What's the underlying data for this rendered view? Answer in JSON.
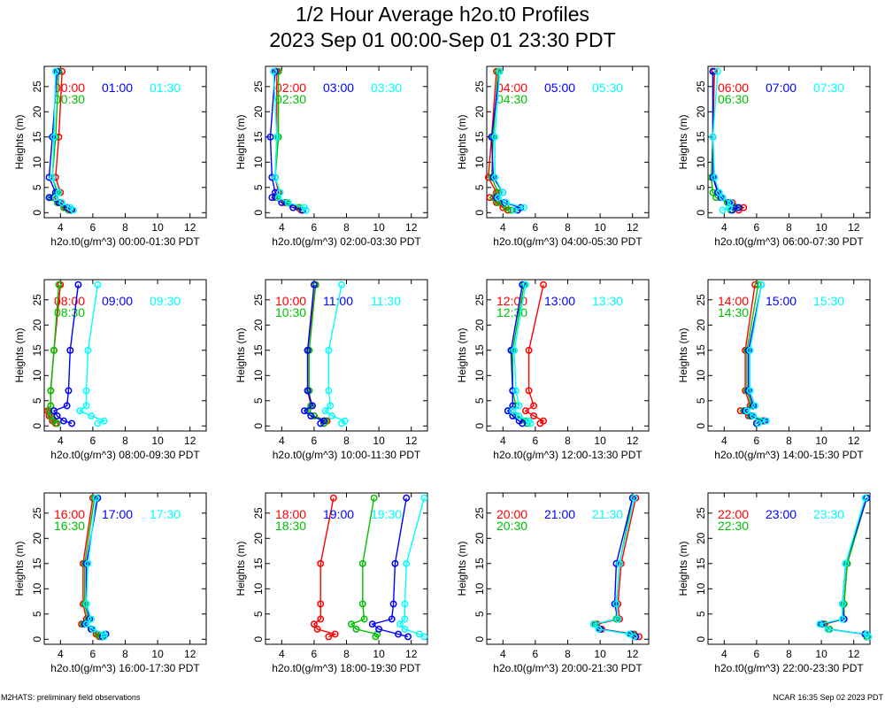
{
  "title": "1/2 Hour Average h2o.t0 Profiles",
  "subtitle": "2023 Sep 01 00:00-Sep 01 23:30 PDT",
  "footer_left": "M2HATS: preliminary field observations",
  "footer_right": "NCAR 16:35 Sep 02 2023 PDT",
  "colors": {
    "series1": "#ff0000",
    "series2": "#00c000",
    "series3": "#0000ff",
    "series4": "#00ffff"
  },
  "chart_data": [
    {
      "type": "line",
      "ylabel": "Heights (m)",
      "xlabel": "h2o.t0(g/m^3) 00:00-01:30 PDT",
      "xlim": [
        3,
        13
      ],
      "ylim": [
        -1,
        29
      ],
      "xticks": [
        4,
        6,
        8,
        10,
        12
      ],
      "yticks": [
        0,
        5,
        10,
        15,
        20,
        25
      ],
      "y": [
        0.5,
        1,
        2,
        3,
        4,
        7,
        15,
        28
      ],
      "series": [
        {
          "name": "00:00",
          "color": "#ff0000",
          "values": [
            4.6,
            4.3,
            4.0,
            3.6,
            4.0,
            3.7,
            3.9,
            4.1
          ]
        },
        {
          "name": "00:30",
          "color": "#00c000",
          "values": [
            4.5,
            4.2,
            3.8,
            3.4,
            3.8,
            3.5,
            3.7,
            3.9
          ]
        },
        {
          "name": "01:00",
          "color": "#0000ff",
          "values": [
            4.7,
            4.4,
            3.9,
            3.3,
            3.7,
            3.3,
            3.5,
            3.8
          ]
        },
        {
          "name": "01:30",
          "color": "#00ffff",
          "values": [
            4.8,
            4.6,
            4.1,
            3.7,
            3.9,
            3.5,
            3.6,
            3.7
          ]
        }
      ]
    },
    {
      "type": "line",
      "ylabel": "Heights (m)",
      "xlabel": "h2o.t0(g/m^3) 02:00-03:30 PDT",
      "xlim": [
        3,
        13
      ],
      "ylim": [
        -1,
        29
      ],
      "xticks": [
        4,
        6,
        8,
        10,
        12
      ],
      "yticks": [
        0,
        5,
        10,
        15,
        20,
        25
      ],
      "y": [
        0.5,
        1,
        2,
        3,
        4,
        7,
        15,
        28
      ],
      "series": [
        {
          "name": "02:00",
          "color": "#ff0000",
          "values": [
            5.2,
            5.0,
            4.2,
            3.6,
            3.8,
            3.6,
            3.7,
            3.7
          ]
        },
        {
          "name": "02:30",
          "color": "#00c000",
          "values": [
            5.3,
            5.1,
            4.3,
            3.7,
            3.9,
            3.6,
            3.8,
            3.8
          ]
        },
        {
          "name": "03:00",
          "color": "#0000ff",
          "values": [
            5.3,
            4.7,
            4.0,
            3.4,
            3.6,
            3.4,
            3.3,
            3.6
          ]
        },
        {
          "name": "03:30",
          "color": "#00ffff",
          "values": [
            5.5,
            5.4,
            4.4,
            3.8,
            3.9,
            3.6,
            3.7,
            3.5
          ]
        }
      ]
    },
    {
      "type": "line",
      "ylabel": "Heights (m)",
      "xlabel": "h2o.t0(g/m^3) 04:00-05:30 PDT",
      "xlim": [
        3,
        13
      ],
      "ylim": [
        -1,
        29
      ],
      "xticks": [
        4,
        6,
        8,
        10,
        12
      ],
      "yticks": [
        0,
        5,
        10,
        15,
        20,
        25
      ],
      "y": [
        0.5,
        1,
        2,
        3,
        4,
        7,
        15,
        28
      ],
      "series": [
        {
          "name": "04:00",
          "color": "#ff0000",
          "values": [
            4.3,
            4.0,
            3.6,
            3.2,
            3.6,
            3.1,
            3.3,
            3.6
          ]
        },
        {
          "name": "04:30",
          "color": "#00c000",
          "values": [
            4.5,
            4.2,
            3.7,
            3.4,
            3.7,
            3.3,
            3.4,
            3.7
          ]
        },
        {
          "name": "05:00",
          "color": "#0000ff",
          "values": [
            4.9,
            5.1,
            4.1,
            3.6,
            4.0,
            3.4,
            3.3,
            3.8
          ]
        },
        {
          "name": "05:30",
          "color": "#00ffff",
          "values": [
            4.7,
            5.3,
            4.2,
            3.7,
            4.0,
            3.5,
            3.5,
            3.8
          ]
        }
      ]
    },
    {
      "type": "line",
      "ylabel": "Heights (m)",
      "xlabel": "h2o.t0(g/m^3) 06:00-07:30 PDT",
      "xlim": [
        3,
        13
      ],
      "ylim": [
        -1,
        29
      ],
      "xticks": [
        4,
        6,
        8,
        10,
        12
      ],
      "yticks": [
        0,
        5,
        10,
        15,
        20,
        25
      ],
      "y": [
        0.5,
        1,
        2,
        3,
        4,
        7,
        15,
        28
      ],
      "series": [
        {
          "name": "06:00",
          "color": "#ff0000",
          "values": [
            4.9,
            5.2,
            4.5,
            3.9,
            3.6,
            3.4,
            3.3,
            3.4
          ]
        },
        {
          "name": "06:30",
          "color": "#00c000",
          "values": [
            4.4,
            4.8,
            4.2,
            3.5,
            3.3,
            3.2,
            3.3,
            3.3
          ]
        },
        {
          "name": "07:00",
          "color": "#0000ff",
          "values": [
            4.5,
            4.9,
            4.3,
            3.8,
            3.6,
            3.3,
            3.3,
            3.3
          ]
        },
        {
          "name": "07:30",
          "color": "#00ffff",
          "values": [
            3.9,
            4.3,
            4.4,
            3.9,
            3.7,
            3.4,
            3.3,
            3.6
          ]
        }
      ]
    },
    {
      "type": "line",
      "ylabel": "Heights (m)",
      "xlabel": "h2o.t0(g/m^3) 08:00-09:30 PDT",
      "xlim": [
        3,
        13
      ],
      "ylim": [
        -1,
        29
      ],
      "xticks": [
        4,
        6,
        8,
        10,
        12
      ],
      "yticks": [
        0,
        5,
        10,
        15,
        20,
        25
      ],
      "y": [
        0.5,
        1,
        2,
        3,
        4,
        7,
        15,
        28
      ],
      "series": [
        {
          "name": "08:00",
          "color": "#ff0000",
          "values": [
            3.7,
            3.5,
            3.3,
            3.2,
            3.4,
            3.4,
            3.6,
            4.0
          ]
        },
        {
          "name": "08:30",
          "color": "#00c000",
          "values": [
            3.8,
            3.6,
            3.4,
            3.3,
            3.4,
            3.4,
            3.6,
            3.9
          ]
        },
        {
          "name": "09:00",
          "color": "#0000ff",
          "values": [
            4.7,
            4.2,
            3.8,
            3.6,
            4.4,
            4.5,
            4.6,
            5.1
          ]
        },
        {
          "name": "09:30",
          "color": "#00ffff",
          "values": [
            6.3,
            6.7,
            5.9,
            5.2,
            5.6,
            5.6,
            5.7,
            6.3
          ]
        }
      ]
    },
    {
      "type": "line",
      "ylabel": "Heights (m)",
      "xlabel": "h2o.t0(g/m^3) 10:00-11:30 PDT",
      "xlim": [
        3,
        13
      ],
      "ylim": [
        -1,
        29
      ],
      "xticks": [
        4,
        6,
        8,
        10,
        12
      ],
      "yticks": [
        0,
        5,
        10,
        15,
        20,
        25
      ],
      "y": [
        0.5,
        1,
        2,
        3,
        4,
        7,
        15,
        28
      ],
      "series": [
        {
          "name": "10:00",
          "color": "#ff0000",
          "values": [
            6.6,
            6.8,
            6.0,
            5.6,
            5.8,
            5.6,
            5.6,
            6.1
          ]
        },
        {
          "name": "10:30",
          "color": "#00c000",
          "values": [
            6.6,
            6.7,
            6.0,
            5.6,
            5.8,
            5.7,
            5.7,
            6.1
          ]
        },
        {
          "name": "11:00",
          "color": "#0000ff",
          "values": [
            6.4,
            6.6,
            5.8,
            5.4,
            5.9,
            5.6,
            5.6,
            6.0
          ]
        },
        {
          "name": "11:30",
          "color": "#00ffff",
          "values": [
            7.7,
            7.9,
            7.1,
            6.7,
            7.0,
            6.9,
            6.9,
            7.7
          ]
        }
      ]
    },
    {
      "type": "line",
      "ylabel": "Heights (m)",
      "xlabel": "h2o.t0(g/m^3) 12:00-13:30 PDT",
      "xlim": [
        3,
        13
      ],
      "ylim": [
        -1,
        29
      ],
      "xticks": [
        4,
        6,
        8,
        10,
        12
      ],
      "yticks": [
        0,
        5,
        10,
        15,
        20,
        25
      ],
      "y": [
        0.5,
        1,
        2,
        3,
        4,
        7,
        15,
        28
      ],
      "series": [
        {
          "name": "12:00",
          "color": "#ff0000",
          "values": [
            6.3,
            6.5,
            5.9,
            5.4,
            5.9,
            5.6,
            5.6,
            6.5
          ]
        },
        {
          "name": "12:30",
          "color": "#00c000",
          "values": [
            5.5,
            5.4,
            4.8,
            4.3,
            4.8,
            4.6,
            4.6,
            5.3
          ]
        },
        {
          "name": "13:00",
          "color": "#0000ff",
          "values": [
            5.2,
            5.0,
            4.6,
            4.3,
            4.6,
            4.6,
            4.5,
            5.2
          ]
        },
        {
          "name": "13:30",
          "color": "#00ffff",
          "values": [
            5.7,
            5.6,
            5.0,
            4.6,
            5.0,
            4.8,
            4.7,
            5.4
          ]
        }
      ]
    },
    {
      "type": "line",
      "ylabel": "Heights (m)",
      "xlabel": "h2o.t0(g/m^3) 14:00-15:30 PDT",
      "xlim": [
        3,
        13
      ],
      "ylim": [
        -1,
        29
      ],
      "xticks": [
        4,
        6,
        8,
        10,
        12
      ],
      "yticks": [
        0,
        5,
        10,
        15,
        20,
        25
      ],
      "y": [
        0.5,
        1,
        2,
        3,
        4,
        7,
        15,
        28
      ],
      "series": [
        {
          "name": "14:00",
          "color": "#ff0000",
          "values": [
            6.0,
            6.4,
            5.5,
            5.0,
            5.6,
            5.3,
            5.3,
            5.9
          ]
        },
        {
          "name": "14:30",
          "color": "#00c000",
          "values": [
            6.0,
            6.3,
            5.6,
            5.2,
            5.7,
            5.4,
            5.4,
            6.1
          ]
        },
        {
          "name": "15:00",
          "color": "#0000ff",
          "values": [
            6.0,
            6.5,
            5.7,
            5.3,
            5.8,
            5.5,
            5.5,
            6.3
          ]
        },
        {
          "name": "15:30",
          "color": "#00ffff",
          "values": [
            6.1,
            6.6,
            5.8,
            5.4,
            5.9,
            5.6,
            5.6,
            6.3
          ]
        }
      ]
    },
    {
      "type": "line",
      "ylabel": "Heights (m)",
      "xlabel": "h2o.t0(g/m^3) 16:00-17:30 PDT",
      "xlim": [
        3,
        13
      ],
      "ylim": [
        -1,
        29
      ],
      "xticks": [
        4,
        6,
        8,
        10,
        12
      ],
      "yticks": [
        0,
        5,
        10,
        15,
        20,
        25
      ],
      "y": [
        0.5,
        1,
        2,
        3,
        4,
        7,
        15,
        28
      ],
      "series": [
        {
          "name": "16:00",
          "color": "#ff0000",
          "values": [
            6.4,
            6.2,
            5.9,
            5.3,
            5.6,
            5.4,
            5.4,
            6.0
          ]
        },
        {
          "name": "16:30",
          "color": "#00c000",
          "values": [
            6.5,
            6.3,
            5.9,
            5.4,
            5.7,
            5.5,
            5.5,
            6.1
          ]
        },
        {
          "name": "17:00",
          "color": "#0000ff",
          "values": [
            6.6,
            6.8,
            5.9,
            5.5,
            5.8,
            5.6,
            5.6,
            6.3
          ]
        },
        {
          "name": "17:30",
          "color": "#00ffff",
          "values": [
            6.7,
            6.7,
            6.0,
            5.6,
            5.9,
            5.6,
            5.7,
            6.2
          ]
        }
      ]
    },
    {
      "type": "line",
      "ylabel": "Heights (m)",
      "xlabel": "h2o.t0(g/m^3) 18:00-19:30 PDT",
      "xlim": [
        3,
        13
      ],
      "ylim": [
        -1,
        29
      ],
      "xticks": [
        4,
        6,
        8,
        10,
        12
      ],
      "yticks": [
        0,
        5,
        10,
        15,
        20,
        25
      ],
      "y": [
        0.5,
        1,
        2,
        3,
        4,
        7,
        15,
        28
      ],
      "series": [
        {
          "name": "18:00",
          "color": "#ff0000",
          "values": [
            6.9,
            7.3,
            6.2,
            6.0,
            6.4,
            6.4,
            6.4,
            7.2
          ]
        },
        {
          "name": "18:30",
          "color": "#00c000",
          "values": [
            9.8,
            9.9,
            8.6,
            8.3,
            9.1,
            9.0,
            9.0,
            9.7
          ]
        },
        {
          "name": "19:00",
          "color": "#0000ff",
          "values": [
            11.8,
            11.2,
            10.0,
            9.6,
            10.8,
            10.9,
            11.0,
            11.7
          ]
        },
        {
          "name": "19:30",
          "color": "#00ffff",
          "values": [
            12.8,
            12.5,
            11.6,
            11.3,
            11.6,
            11.6,
            11.7,
            12.8
          ]
        }
      ]
    },
    {
      "type": "line",
      "ylabel": "Heights (m)",
      "xlabel": "h2o.t0(g/m^3) 20:00-21:30 PDT",
      "xlim": [
        3,
        13
      ],
      "ylim": [
        -1,
        29
      ],
      "xticks": [
        4,
        6,
        8,
        10,
        12
      ],
      "yticks": [
        0,
        5,
        10,
        15,
        20,
        25
      ],
      "y": [
        0.5,
        1,
        2,
        3,
        4,
        7,
        15,
        28
      ],
      "series": [
        {
          "name": "20:00",
          "color": "#ff0000",
          "values": [
            12.4,
            12.1,
            10.1,
            9.8,
            11.2,
            11.1,
            11.3,
            12.2
          ]
        },
        {
          "name": "20:30",
          "color": "#00c000",
          "values": [
            12.2,
            12.0,
            10.0,
            9.7,
            11.0,
            11.0,
            11.2,
            12.0
          ]
        },
        {
          "name": "21:00",
          "color": "#0000ff",
          "values": [
            12.2,
            11.9,
            10.0,
            9.6,
            11.1,
            10.9,
            11.0,
            12.0
          ]
        },
        {
          "name": "21:30",
          "color": "#00ffff",
          "values": [
            12.1,
            11.8,
            9.9,
            9.6,
            11.1,
            11.0,
            11.2,
            12.1
          ]
        }
      ]
    },
    {
      "type": "line",
      "ylabel": "Heights (m)",
      "xlabel": "h2o.t0(g/m^3) 22:00-23:30 PDT",
      "xlim": [
        3,
        13
      ],
      "ylim": [
        -1,
        29
      ],
      "xticks": [
        4,
        6,
        8,
        10,
        12
      ],
      "yticks": [
        0,
        5,
        10,
        15,
        20,
        25
      ],
      "y": [
        0.5,
        1,
        2,
        3,
        4,
        7,
        15,
        28
      ],
      "series": [
        {
          "name": "22:00",
          "color": "#ff0000",
          "values": [
            12.8,
            12.7,
            10.5,
            10.2,
            11.4,
            11.4,
            11.6,
            12.8
          ]
        },
        {
          "name": "22:30",
          "color": "#00c000",
          "values": [
            12.8,
            12.7,
            10.5,
            10.1,
            11.4,
            11.4,
            11.6,
            12.8
          ]
        },
        {
          "name": "23:00",
          "color": "#0000ff",
          "values": [
            12.9,
            12.7,
            10.4,
            10.0,
            11.4,
            11.3,
            11.5,
            12.8
          ]
        },
        {
          "name": "23:30",
          "color": "#00ffff",
          "values": [
            12.9,
            12.8,
            10.4,
            9.9,
            11.3,
            11.3,
            11.5,
            12.7
          ]
        }
      ]
    }
  ]
}
